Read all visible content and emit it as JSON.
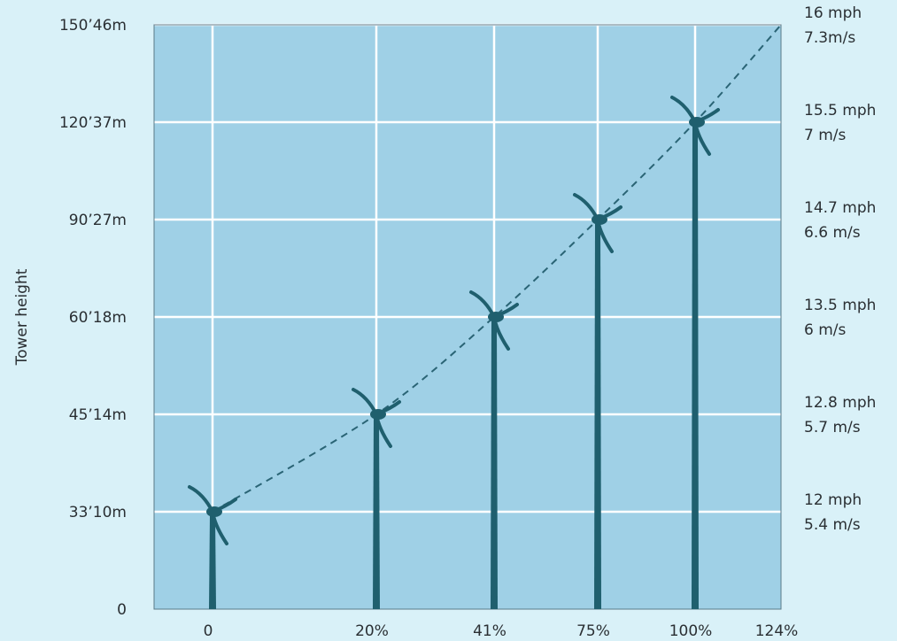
{
  "chart_data": {
    "type": "line",
    "ylabel": "Tower height",
    "y_ticks": [
      {
        "value": 0,
        "label": "0"
      },
      {
        "value": 33,
        "label": "33’10m"
      },
      {
        "value": 45,
        "label": "45’14m"
      },
      {
        "value": 60,
        "label": "60’18m"
      },
      {
        "value": 90,
        "label": "90’27m"
      },
      {
        "value": 120,
        "label": "120’37m"
      },
      {
        "value": 150,
        "label": "150’46m"
      }
    ],
    "x_ticks": [
      {
        "value": 0,
        "label": "0"
      },
      {
        "value": 20,
        "label": "20%"
      },
      {
        "value": 41,
        "label": "41%"
      },
      {
        "value": 75,
        "label": "75%"
      },
      {
        "value": 100,
        "label": "100%"
      },
      {
        "value": 124,
        "label": "124%"
      }
    ],
    "right_labels": [
      {
        "value": 150,
        "mph": "16 mph",
        "ms": "7.3m/s"
      },
      {
        "value": 120,
        "mph": "15.5 mph",
        "ms": "7 m/s"
      },
      {
        "value": 90,
        "mph": "14.7 mph",
        "ms": "6.6 m/s"
      },
      {
        "value": 60,
        "mph": "13.5 mph",
        "ms": "6 m/s"
      },
      {
        "value": 45,
        "mph": "12.8 mph",
        "ms": "5.7 m/s"
      },
      {
        "value": 33,
        "mph": "12 mph",
        "ms": "5.4 m/s"
      }
    ],
    "series": [
      {
        "x": [
          0,
          20,
          41,
          75,
          100,
          124
        ],
        "y": [
          33,
          45,
          60,
          90,
          120,
          150
        ]
      }
    ],
    "turbines": [
      {
        "x": 0,
        "y": 33
      },
      {
        "x": 20,
        "y": 45
      },
      {
        "x": 41,
        "y": 60
      },
      {
        "x": 75,
        "y": 90
      },
      {
        "x": 100,
        "y": 120
      }
    ],
    "grid": true,
    "colors": {
      "plot_bg": "#9fd0e6",
      "page_bg": "#d9f1f8",
      "grid": "#ffffff",
      "turbine": "#1f5f6e",
      "curve": "#2a6475"
    }
  }
}
